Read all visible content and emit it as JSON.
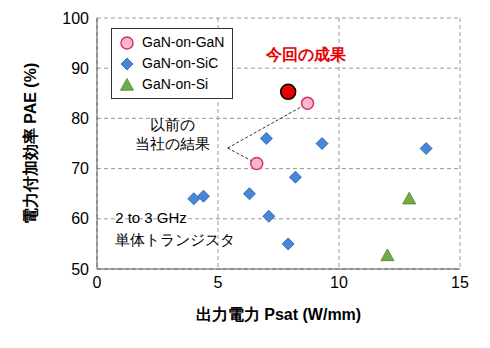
{
  "chart_data": {
    "type": "scatter",
    "xlabel": "出力電力 Psat (W/mm)",
    "ylabel": "電力付加効率 PAE (%)",
    "xlim": [
      0,
      15
    ],
    "xticks": [
      0,
      5,
      10,
      15
    ],
    "ylim": [
      50,
      100
    ],
    "yticks": [
      50,
      60,
      70,
      80,
      90,
      100
    ],
    "grid": true,
    "legend": "upper left",
    "series": [
      {
        "name": "GaN-on-GaN",
        "color": "#f9b8c8",
        "marker": "circle",
        "x": [
          6.6,
          8.7
        ],
        "values": [
          71,
          83
        ]
      },
      {
        "name": "GaN-on-SiC",
        "color": "#4a86d8",
        "marker": "diamond",
        "x": [
          4.0,
          4.4,
          6.3,
          7.0,
          7.1,
          8.2,
          7.9,
          9.3,
          13.6
        ],
        "values": [
          64,
          64.5,
          65,
          76,
          60.5,
          68.3,
          55,
          75,
          74
        ]
      },
      {
        "name": "GaN-on-Si",
        "color": "#70ad47",
        "marker": "triangle",
        "x": [
          12.9,
          12.0
        ],
        "values": [
          64,
          52.7
        ]
      }
    ],
    "annotations": [
      {
        "text": "今回の成果",
        "x": 7.9,
        "y": 85.3,
        "color": "#e60000",
        "marker": "circle"
      },
      {
        "text": "以前の\n当社の結果"
      },
      {
        "text": "2 to 3 GHz\n単体トランジスタ"
      }
    ]
  }
}
